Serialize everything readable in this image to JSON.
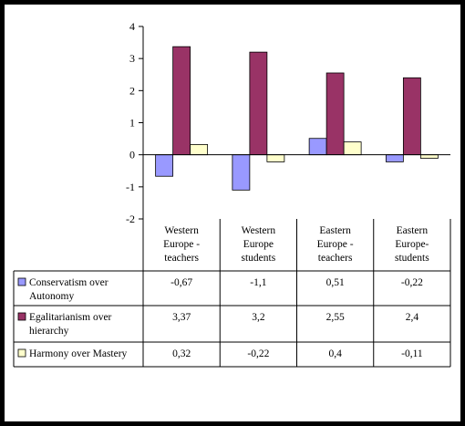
{
  "chart_data": {
    "type": "bar",
    "categories": [
      [
        "Western",
        "Europe -",
        "teachers"
      ],
      [
        "Western",
        "Europe",
        "students"
      ],
      [
        "Eastern",
        "Europe -",
        "teachers"
      ],
      [
        "Eastern",
        "Europe-",
        "students"
      ]
    ],
    "series": [
      {
        "name": [
          "Conservatism over",
          "Autonomy"
        ],
        "color": "#9999ff",
        "values": [
          -0.67,
          -1.1,
          0.51,
          -0.22
        ],
        "labels": [
          "-0,67",
          "-1,1",
          "0,51",
          "-0,22"
        ]
      },
      {
        "name": [
          "Egalitarianism over",
          "hierarchy"
        ],
        "color": "#993366",
        "values": [
          3.37,
          3.2,
          2.55,
          2.4
        ],
        "labels": [
          "3,37",
          "3,2",
          "2,55",
          "2,4"
        ]
      },
      {
        "name": [
          "Harmony over Mastery"
        ],
        "color": "#ffffcc",
        "values": [
          0.32,
          -0.22,
          0.4,
          -0.11
        ],
        "labels": [
          "0,32",
          "-0,22",
          "0,4",
          "-0,11"
        ]
      }
    ],
    "ylim": [
      -2,
      4
    ],
    "yticks": [
      "-2",
      "-1",
      "0",
      "1",
      "2",
      "3",
      "4"
    ],
    "grid": false,
    "legend": "data-table"
  }
}
